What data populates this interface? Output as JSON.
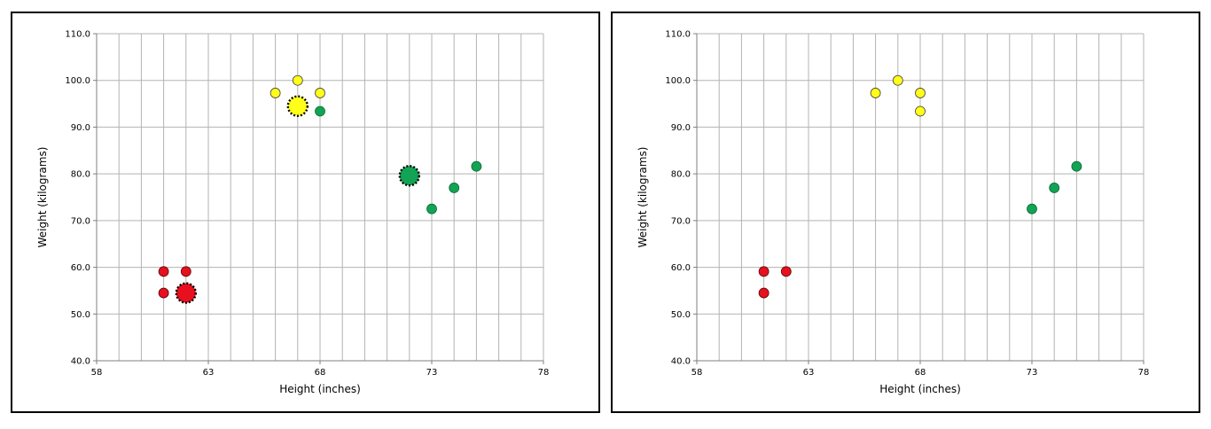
{
  "colors": {
    "red": "#e8101e",
    "yellow": "#ffff1a",
    "green": "#12a354",
    "grid": "#b3b3b3"
  },
  "chart_data": [
    {
      "type": "scatter",
      "xlabel": "Height (inches)",
      "ylabel": "Weight (kilograms)",
      "xlim": [
        58,
        78
      ],
      "ylim": [
        40,
        110
      ],
      "xticks": [
        "58",
        "63",
        "68",
        "73",
        "78"
      ],
      "yticks": [
        "40.0",
        "50.0",
        "60.0",
        "70.0",
        "80.0",
        "90.0",
        "100.0",
        "110.0"
      ],
      "grid": true,
      "series": [
        {
          "color": "red",
          "points": [
            [
              61,
              59.1
            ],
            [
              62,
              59.1
            ],
            [
              61,
              54.5
            ]
          ]
        },
        {
          "color": "yellow",
          "points": [
            [
              66,
              97.3
            ],
            [
              67,
              100.0
            ],
            [
              68,
              97.3
            ]
          ]
        },
        {
          "color": "green",
          "points": [
            [
              68,
              93.4
            ],
            [
              73,
              72.5
            ],
            [
              74,
              77.0
            ],
            [
              75,
              81.6
            ]
          ]
        }
      ],
      "centroids": [
        {
          "color": "red",
          "point": [
            62,
            54.5
          ]
        },
        {
          "color": "yellow",
          "point": [
            67,
            94.5
          ]
        },
        {
          "color": "green",
          "point": [
            72,
            79.6
          ]
        }
      ]
    },
    {
      "type": "scatter",
      "xlabel": "Height (inches)",
      "ylabel": "Weight (kilograms)",
      "xlim": [
        58,
        78
      ],
      "ylim": [
        40,
        110
      ],
      "xticks": [
        "58",
        "63",
        "68",
        "73",
        "78"
      ],
      "yticks": [
        "40.0",
        "50.0",
        "60.0",
        "70.0",
        "80.0",
        "90.0",
        "100.0",
        "110.0"
      ],
      "grid": true,
      "series": [
        {
          "color": "red",
          "points": [
            [
              61,
              59.1
            ],
            [
              62,
              59.1
            ],
            [
              61,
              54.5
            ]
          ]
        },
        {
          "color": "yellow",
          "points": [
            [
              66,
              97.3
            ],
            [
              67,
              100.0
            ],
            [
              68,
              97.3
            ],
            [
              68,
              93.4
            ]
          ]
        },
        {
          "color": "green",
          "points": [
            [
              73,
              72.5
            ],
            [
              74,
              77.0
            ],
            [
              75,
              81.6
            ]
          ]
        }
      ],
      "centroids": []
    }
  ]
}
